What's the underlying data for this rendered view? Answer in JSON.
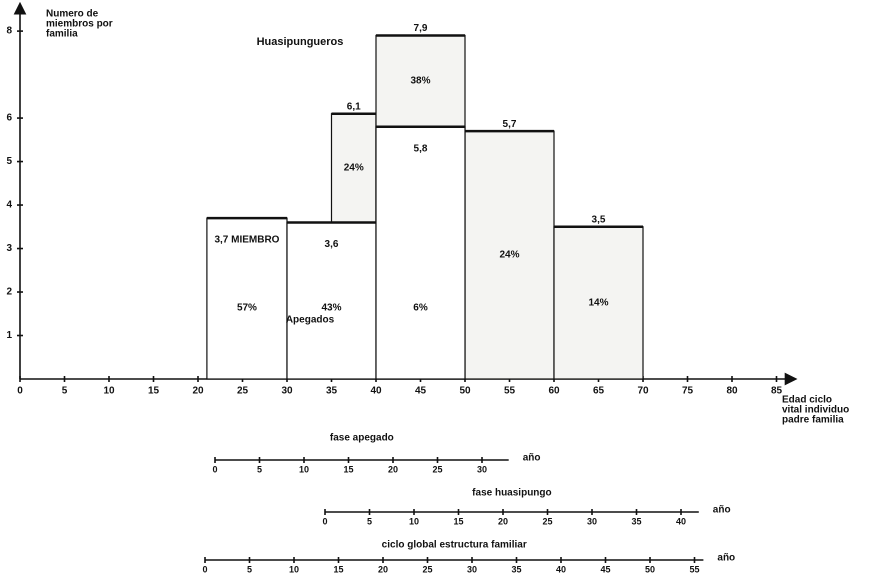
{
  "chart_data": {
    "type": "overlap-bar",
    "title": "Huasipungueros",
    "y_label": [
      "Numero de",
      "miembros por",
      "familia"
    ],
    "x_label": [
      "Edad ciclo",
      "vital individuo",
      "padre familia"
    ],
    "xlim": [
      0,
      87
    ],
    "xticks": [
      0,
      5,
      10,
      15,
      20,
      25,
      30,
      35,
      40,
      45,
      50,
      55,
      60,
      65,
      70,
      75,
      80,
      85
    ],
    "ylim": [
      0,
      8.6
    ],
    "yticks": [
      1,
      2,
      3,
      4,
      5,
      6,
      8
    ],
    "series": [
      {
        "name": "Apegados",
        "color": "#ffffff",
        "intervals": [
          [
            21,
            30
          ],
          [
            30,
            40
          ],
          [
            40,
            50
          ]
        ],
        "values": [
          3.7,
          3.6,
          5.8
        ],
        "value_labels": [
          "3,7 MIEMBRO",
          "3,6",
          "5,8"
        ],
        "shares": [
          57,
          43,
          6
        ],
        "share_labels": [
          "57%",
          "43%",
          "6%"
        ]
      },
      {
        "name": "Huasipungueros",
        "color": "#f4f4f2",
        "intervals": [
          [
            35,
            40
          ],
          [
            40,
            50
          ],
          [
            50,
            60
          ],
          [
            60,
            70
          ]
        ],
        "values": [
          6.1,
          7.9,
          5.7,
          3.5
        ],
        "value_labels": [
          "6,1",
          "7,9",
          "5,7",
          "3,5"
        ],
        "shares": [
          24,
          38,
          24,
          14
        ],
        "share_labels": [
          "24%",
          "38%",
          "24%",
          "14%"
        ]
      }
    ],
    "timelines": [
      {
        "title": "fase apegado",
        "unit": "año",
        "xlim": [
          0,
          33
        ],
        "xticks": [
          0,
          5,
          10,
          15,
          20,
          25,
          30
        ]
      },
      {
        "title": "fase huasipungo",
        "unit": "año",
        "xlim": [
          0,
          42
        ],
        "xticks": [
          0,
          5,
          10,
          15,
          20,
          25,
          30,
          35,
          40
        ]
      },
      {
        "title": "ciclo global estructura familiar",
        "unit": "año",
        "xlim": [
          0,
          56
        ],
        "xticks": [
          0,
          5,
          10,
          15,
          20,
          25,
          30,
          35,
          40,
          45,
          50,
          55
        ]
      }
    ]
  }
}
